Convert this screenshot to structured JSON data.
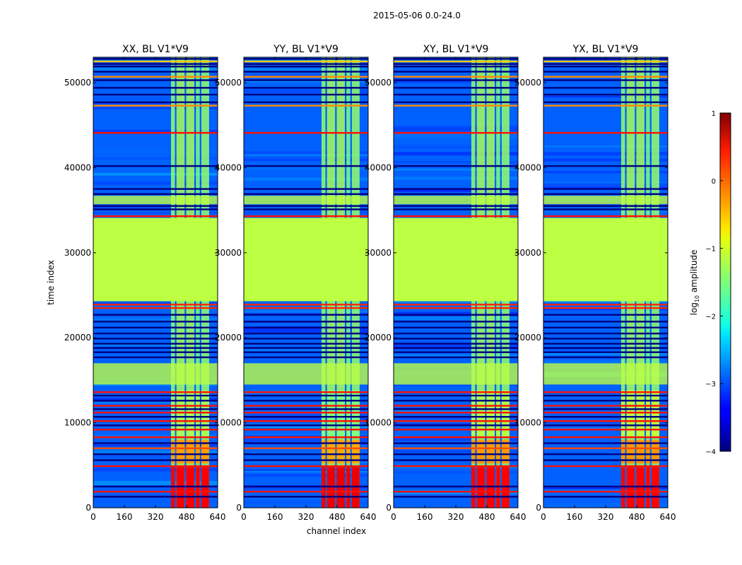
{
  "suptitle": "2015-05-06 0.0-24.0",
  "chart_data": {
    "type": "heatmap",
    "xlabel": "channel index",
    "ylabel": "time index",
    "xlim": [
      0,
      640
    ],
    "ylim": [
      0,
      53000
    ],
    "xticks": [
      0,
      160,
      320,
      480,
      640
    ],
    "yticks": [
      0,
      10000,
      20000,
      30000,
      40000,
      50000
    ],
    "panels": [
      {
        "title": "XX, BL V1*V9",
        "strength": 1.0
      },
      {
        "title": "YY, BL V1*V9",
        "strength": 1.15
      },
      {
        "title": "XY, BL V1*V9",
        "strength": 0.95
      },
      {
        "title": "YX, BL V1*V9",
        "strength": 0.9
      }
    ],
    "colorbar": {
      "label": "log10 amplitude",
      "label_base": "log",
      "label_sub": "10",
      "label_rest": " amplitude",
      "range": [
        -4,
        1
      ],
      "ticks": [
        {
          "value": 1,
          "label": "1"
        },
        {
          "value": 0,
          "label": "0"
        },
        {
          "value": -1,
          "label": "−1"
        },
        {
          "value": -2,
          "label": "−2"
        },
        {
          "value": -3,
          "label": "−3"
        },
        {
          "value": -4,
          "label": "−4"
        }
      ],
      "colormap": "jet"
    },
    "background_level": -2.9,
    "flagged_level": -1.2,
    "flagged_time_ranges": [
      [
        24300,
        34100
      ],
      [
        35700,
        36700
      ],
      [
        14500,
        17000
      ]
    ],
    "rfi_lines": [
      {
        "t": 44100,
        "level": 0.3
      },
      {
        "t": 34300,
        "level": 0.3
      },
      {
        "t": 23900,
        "level": 0.2
      },
      {
        "t": 23500,
        "level": 0.2
      },
      {
        "t": 13600,
        "level": 0.3
      },
      {
        "t": 12000,
        "level": 0.3
      },
      {
        "t": 11200,
        "level": 0.3
      },
      {
        "t": 10200,
        "level": 0.3
      },
      {
        "t": 9200,
        "level": 0.3
      },
      {
        "t": 8300,
        "level": 0.3
      },
      {
        "t": 4900,
        "level": 0.3
      },
      {
        "t": 1900,
        "level": 0.3
      },
      {
        "t": 47300,
        "level": -0.3
      },
      {
        "t": 50700,
        "level": -0.3
      },
      {
        "t": 52500,
        "level": -0.6
      },
      {
        "t": 7000,
        "level": 0.0
      }
    ],
    "gap_lines": [
      52800,
      52200,
      51900,
      51300,
      50300,
      49400,
      48600,
      47700,
      40200,
      37500,
      36900,
      35500,
      35100,
      22700,
      21900,
      21200,
      20500,
      19900,
      19300,
      18800,
      18300,
      17700,
      13200,
      12600,
      11600,
      10700,
      9700,
      7600,
      6300,
      5600,
      2500,
      1300
    ],
    "active_channel_range": [
      400,
      600
    ],
    "active_blocks": [
      {
        "ch": [
          400,
          420
        ],
        "level": -1.4
      },
      {
        "ch": [
          428,
          470
        ],
        "level": -1.3
      },
      {
        "ch": [
          478,
          520
        ],
        "level": -1.3
      },
      {
        "ch": [
          528,
          548
        ],
        "level": -1.5
      },
      {
        "ch": [
          556,
          596
        ],
        "level": -1.4
      }
    ],
    "strong_rows": [
      {
        "t": [
          0,
          4800
        ],
        "level": 0.4
      },
      {
        "t": [
          5200,
          8000
        ],
        "level": -0.4
      },
      {
        "t": [
          8300,
          13800
        ],
        "level": -1.3
      }
    ]
  }
}
